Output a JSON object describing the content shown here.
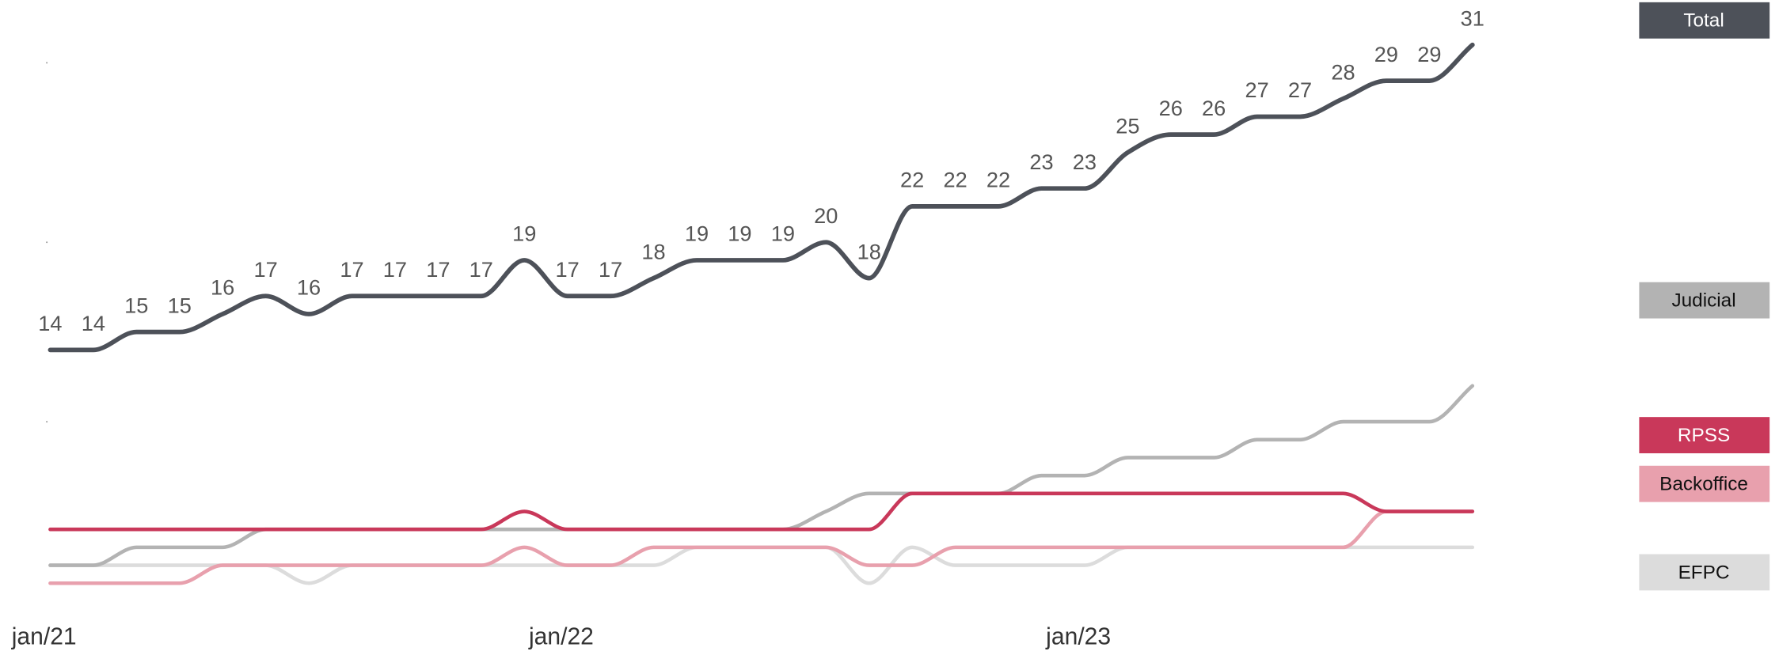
{
  "chart_data": {
    "type": "line",
    "categories": [
      "jan/21",
      null,
      null,
      null,
      null,
      null,
      null,
      null,
      null,
      null,
      null,
      null,
      "jan/22",
      null,
      null,
      null,
      null,
      null,
      null,
      null,
      null,
      null,
      null,
      null,
      "jan/23",
      null,
      null,
      null,
      null,
      null,
      null,
      null,
      null,
      null
    ],
    "ylim": [
      -3,
      33.5
    ],
    "yticks": [
      10,
      20,
      30
    ],
    "series": [
      {
        "name": "EFPC",
        "color": "#dcdcdc",
        "values": [
          2,
          2,
          2,
          2,
          2,
          2,
          1,
          2,
          2,
          2,
          2,
          2,
          2,
          2,
          2,
          3,
          3,
          3,
          3,
          1,
          3,
          2,
          2,
          2,
          2,
          3,
          3,
          3,
          3,
          3,
          3,
          3,
          3,
          3
        ]
      },
      {
        "name": "Backoffice",
        "color": "#e8a0ad",
        "values": [
          1,
          1,
          1,
          1,
          2,
          2,
          2,
          2,
          2,
          2,
          2,
          3,
          2,
          2,
          3,
          3,
          3,
          3,
          3,
          2,
          2,
          3,
          3,
          3,
          3,
          3,
          3,
          3,
          3,
          3,
          3,
          5,
          5,
          5
        ]
      },
      {
        "name": "Judicial",
        "color": "#b3b3b3",
        "values": [
          2,
          2,
          3,
          3,
          3,
          4,
          4,
          4,
          4,
          4,
          4,
          4,
          4,
          4,
          4,
          4,
          4,
          4,
          5,
          6,
          6,
          6,
          6,
          7,
          7,
          8,
          8,
          8,
          9,
          9,
          10,
          10,
          10,
          12
        ]
      },
      {
        "name": "RPSS",
        "color": "#c9385a",
        "values": [
          4,
          4,
          4,
          4,
          4,
          4,
          4,
          4,
          4,
          4,
          4,
          5,
          4,
          4,
          4,
          4,
          4,
          4,
          4,
          4,
          6,
          6,
          6,
          6,
          6,
          6,
          6,
          6,
          6,
          6,
          6,
          5,
          5,
          5
        ]
      },
      {
        "name": "Total",
        "color": "#4d5159",
        "labels": true,
        "values": [
          14,
          14,
          15,
          15,
          16,
          17,
          16,
          17,
          17,
          17,
          17,
          19,
          17,
          17,
          18,
          19,
          19,
          19,
          20,
          18,
          22,
          22,
          22,
          23,
          23,
          25,
          26,
          26,
          27,
          27,
          28,
          29,
          29,
          31
        ]
      }
    ]
  }
}
